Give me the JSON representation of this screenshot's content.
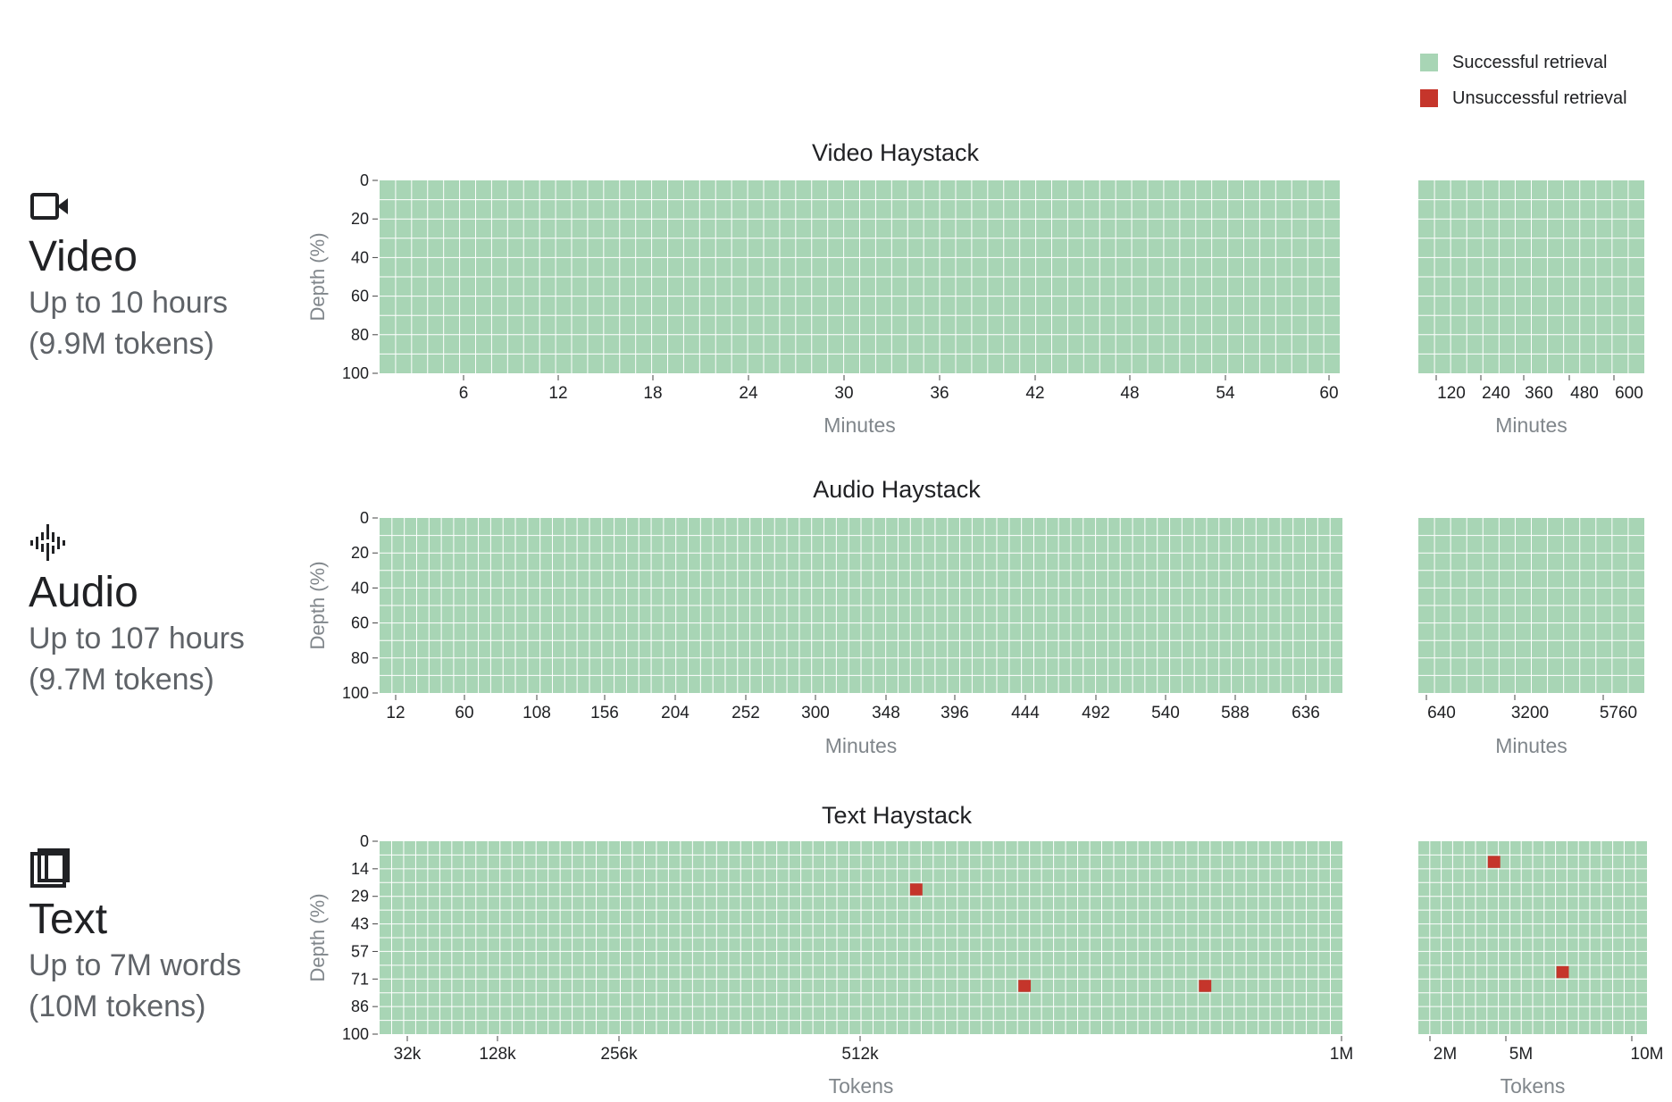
{
  "legend": {
    "success_label": "Successful retrieval",
    "fail_label": "Unsuccessful retrieval",
    "success_color": "#a8d5b5",
    "fail_color": "#c5352b"
  },
  "modalities": [
    {
      "icon": "video-camera-icon",
      "name": "Video",
      "line1": "Up to 10 hours",
      "line2": "(9.9M tokens)"
    },
    {
      "icon": "audio-waveform-icon",
      "name": "Audio",
      "line1": "Up to 107 hours",
      "line2": "(9.7M tokens)"
    },
    {
      "icon": "book-icon",
      "name": "Text",
      "line1": "Up to 7M words",
      "line2": "(10M tokens)"
    }
  ],
  "chart_data": [
    {
      "type": "heatmap",
      "title": "Video Haystack",
      "ylabel": "Depth (%)",
      "yticks": [
        "0",
        "20",
        "40",
        "60",
        "80",
        "100"
      ],
      "main": {
        "xlabel": "Minutes",
        "xticks": [
          "6",
          "12",
          "18",
          "24",
          "30",
          "36",
          "42",
          "48",
          "54",
          "60"
        ],
        "cols": 60,
        "rows": 10,
        "failures": []
      },
      "ext": {
        "xlabel": "Minutes",
        "xticks": [
          "120",
          "240",
          "360",
          "480",
          "600"
        ],
        "cols": 14,
        "rows": 10,
        "failures": []
      }
    },
    {
      "type": "heatmap",
      "title": "Audio Haystack",
      "ylabel": "Depth (%)",
      "yticks": [
        "0",
        "20",
        "40",
        "60",
        "80",
        "100"
      ],
      "main": {
        "xlabel": "Minutes",
        "xticks": [
          "12",
          "60",
          "108",
          "156",
          "204",
          "252",
          "300",
          "348",
          "396",
          "444",
          "492",
          "540",
          "588",
          "636"
        ],
        "cols": 78,
        "rows": 10,
        "failures": []
      },
      "ext": {
        "xlabel": "Minutes",
        "xticks": [
          "640",
          "3200",
          "5760"
        ],
        "cols": 14,
        "rows": 10,
        "failures": []
      }
    },
    {
      "type": "heatmap",
      "title": "Text Haystack",
      "ylabel": "Depth (%)",
      "yticks": [
        "0",
        "14",
        "29",
        "43",
        "57",
        "71",
        "86",
        "100"
      ],
      "main": {
        "xlabel": "Tokens",
        "xticks": [
          "32k",
          "128k",
          "256k",
          "512k",
          "1M"
        ],
        "cols": 80,
        "rows": 14,
        "failures": [
          {
            "col": 44,
            "row": 3
          },
          {
            "col": 53,
            "row": 10
          },
          {
            "col": 68,
            "row": 10
          }
        ]
      },
      "ext": {
        "xlabel": "Tokens",
        "xticks": [
          "2M",
          "5M",
          "10M"
        ],
        "cols": 20,
        "rows": 14,
        "failures": [
          {
            "col": 6,
            "row": 1
          },
          {
            "col": 12,
            "row": 9
          }
        ]
      }
    }
  ]
}
